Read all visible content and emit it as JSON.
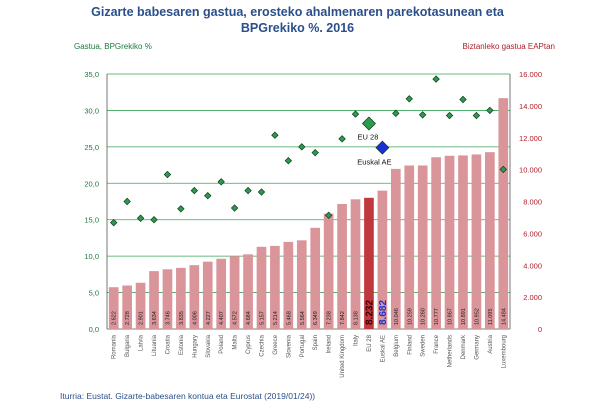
{
  "title_line1": "Gizarte babesaren gastua, erosteko ahalmenaren parekotasunean eta",
  "title_line2": "BPGrekiko %. 2016",
  "left_axis_title": "Gastua, BPGrekiko %",
  "right_axis_title": "Biztanleko gastua EAPtan",
  "source": "Iturria: Eustat. Gizarte-babesaren kontua eta Eurostat (2019/01/24))",
  "colors": {
    "bar": "#d9959a",
    "bar_highlight": "#c0383d",
    "diamond": "#2e9a4e",
    "diamond_stroke": "#0d3d1c",
    "diamond_euskal": "#1a2fd6",
    "grid": "#3aa655",
    "left_axis": "#1e7a3c",
    "right_axis": "#b01e28",
    "title": "#2a4f8a"
  },
  "chart_data": {
    "type": "bar",
    "categories": [
      "Romania",
      "Bulgaria",
      "Latvia",
      "Lituania",
      "Croatia",
      "Estonia",
      "Hungary",
      "Slovakia",
      "Poland",
      "Malta",
      "Cyprus",
      "Czechia",
      "Greece",
      "Slovenia",
      "Portugal",
      "Spain",
      "Ireland",
      "United Kingdom",
      "Italy",
      "EU 28",
      "Euskal AE",
      "Belgium",
      "Finland",
      "Sweden",
      "France",
      "Netherlands",
      "Denmark",
      "Germany",
      "Austria",
      "Luxembourg"
    ],
    "series": [
      {
        "axis": "right",
        "type": "bar",
        "values": [
          2622,
          2728,
          2901,
          3634,
          3746,
          3835,
          4006,
          4227,
          4407,
          4572,
          4684,
          5157,
          5214,
          5468,
          5564,
          6349,
          7238,
          7842,
          8138,
          8232,
          8682,
          10046,
          10259,
          10260,
          10777,
          10867,
          10891,
          10952,
          11095,
          14484
        ],
        "value_labels": [
          "2.622",
          "2.728",
          "2.901",
          "3.634",
          "3.746",
          "3.835",
          "4.006",
          "4.227",
          "4.407",
          "4.572",
          "4.684",
          "5.157",
          "5.214",
          "5.468",
          "5.564",
          "6.349",
          "7.238",
          "7.842",
          "8.138",
          "8.232",
          "8.682",
          "10.046",
          "10.259",
          "10.260",
          "10.777",
          "10.867",
          "10.891",
          "10.952",
          "11.095",
          "14.484"
        ]
      },
      {
        "axis": "left",
        "type": "scatter",
        "values": [
          14.6,
          17.5,
          15.2,
          15.0,
          21.2,
          16.5,
          19.0,
          18.3,
          20.2,
          16.6,
          19.0,
          18.8,
          26.6,
          23.1,
          25.0,
          24.2,
          15.6,
          26.1,
          29.5,
          28.2,
          24.9,
          29.6,
          31.6,
          29.4,
          34.3,
          29.3,
          31.5,
          29.3,
          30.0,
          21.9
        ]
      }
    ],
    "annotations": [
      {
        "category": "EU 28",
        "label": "EU 28"
      },
      {
        "category": "Euskal AE",
        "label": "Euskal AE"
      }
    ],
    "y_left": {
      "min": 0,
      "max": 35,
      "step": 5,
      "tick_labels": [
        "0,0",
        "5,0",
        "10,0",
        "15,0",
        "20,0",
        "25,0",
        "30,0",
        "35,0"
      ]
    },
    "y_right": {
      "min": 0,
      "max": 16000,
      "step": 2000,
      "tick_labels": [
        "0",
        "2.000",
        "4.000",
        "6.000",
        "8.000",
        "10.000",
        "12.000",
        "14.000",
        "16.000"
      ]
    },
    "grid": true
  }
}
